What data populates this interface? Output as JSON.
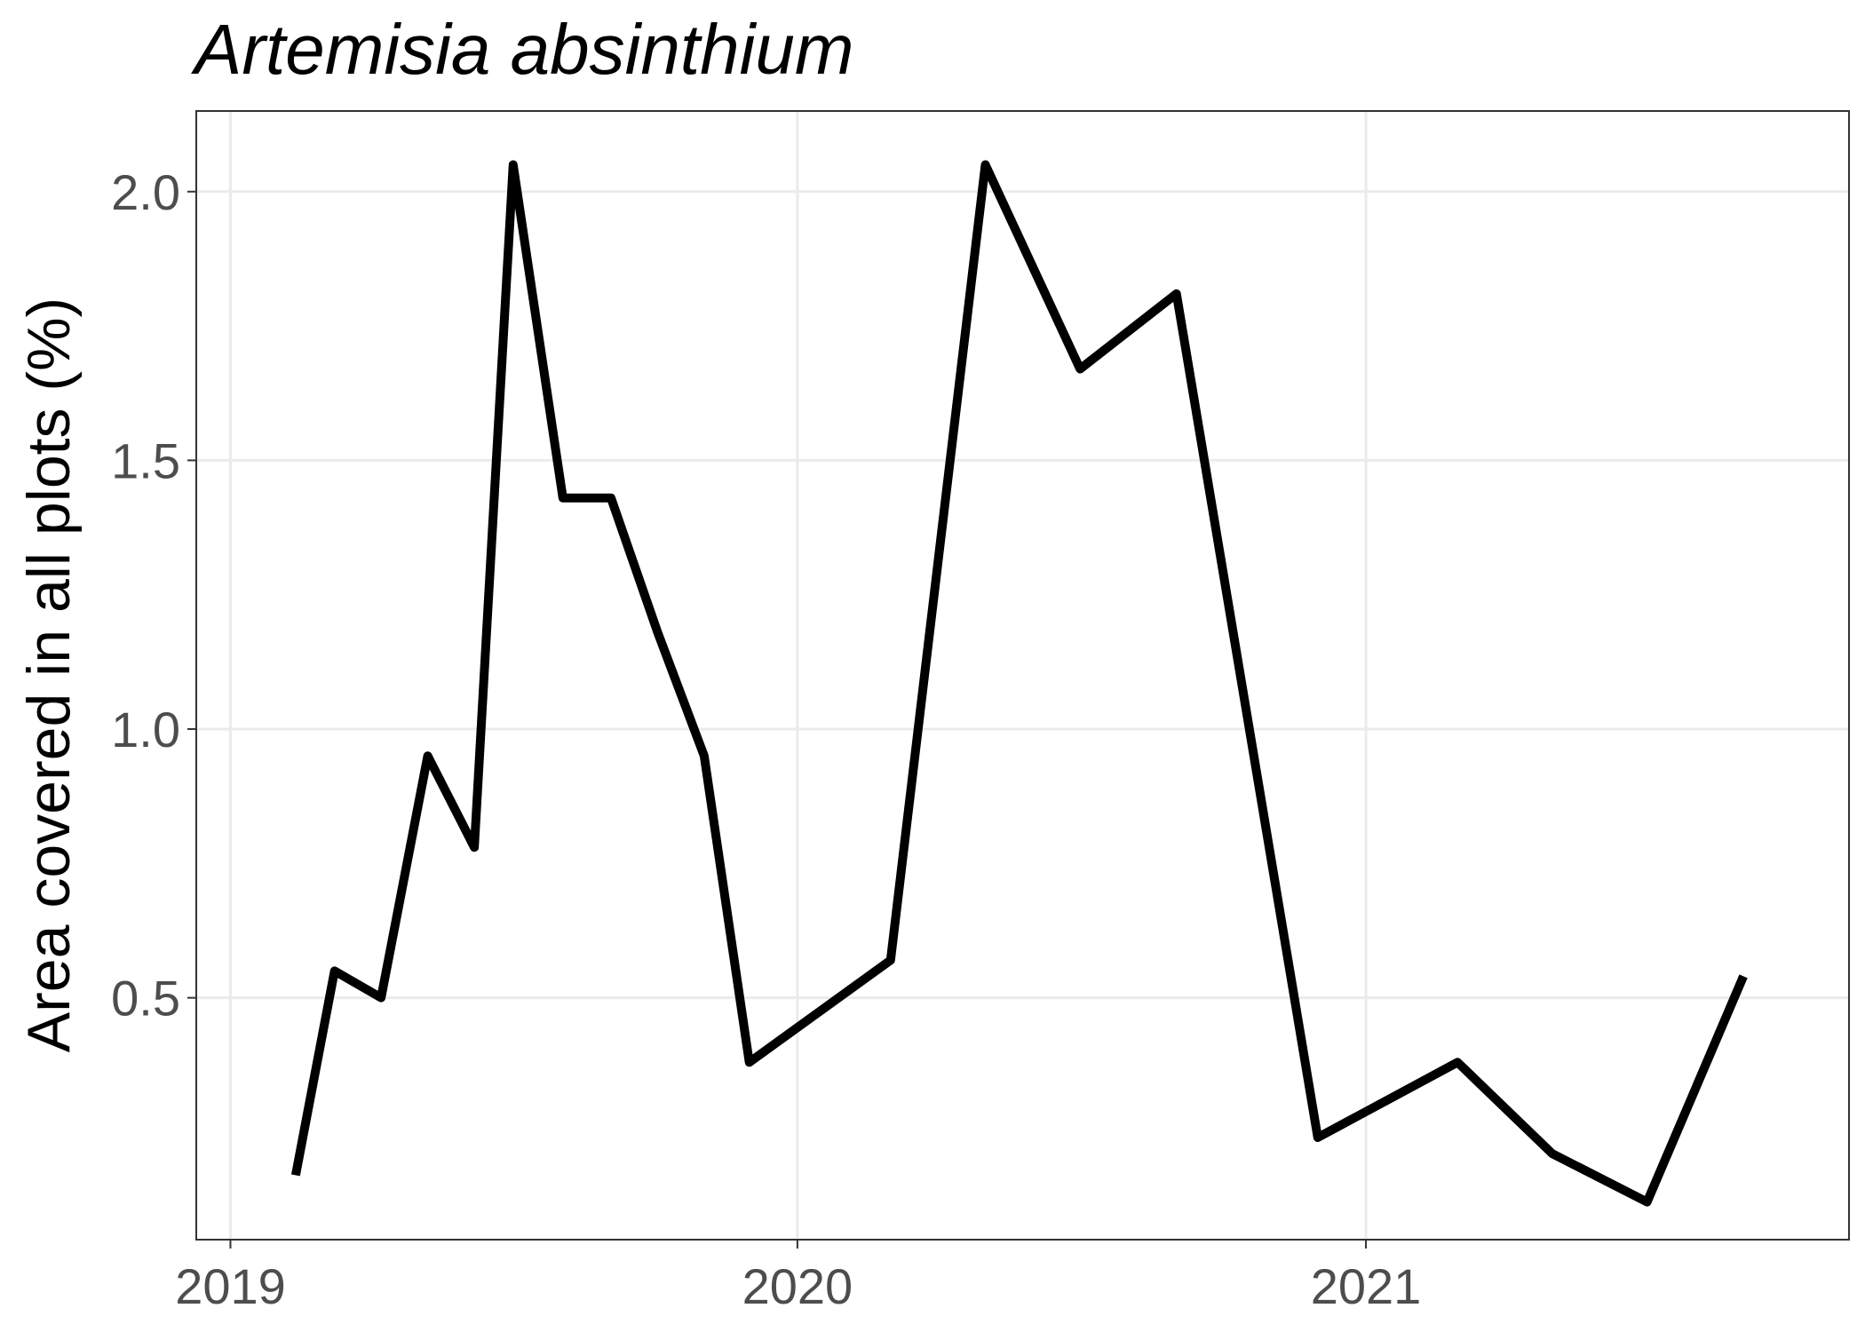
{
  "chart_data": {
    "type": "line",
    "title": "Artemisia absinthium",
    "xlabel": "",
    "ylabel": "Area covered in all plots (%)",
    "x_ticks": [
      "2019",
      "2020",
      "2021"
    ],
    "y_ticks": [
      "0.5",
      "1.0",
      "1.5",
      "2.0"
    ],
    "xlim": [
      "2018-12-10",
      "2021-11-08"
    ],
    "ylim": [
      0.05,
      2.15
    ],
    "grid": true,
    "legend": "none",
    "line_color": "#000000",
    "series": [
      {
        "x": [
          "2019-02-12",
          "2019-03-09",
          "2019-04-08",
          "2019-05-08",
          "2019-06-07",
          "2019-07-02",
          "2019-08-03",
          "2019-09-03",
          "2019-10-03",
          "2019-11-02",
          "2019-12-01",
          "2020-03-01",
          "2020-05-01",
          "2020-07-01",
          "2020-09-01",
          "2020-12-01",
          "2021-03-01",
          "2021-05-01",
          "2021-07-01",
          "2021-09-01"
        ],
        "y": [
          0.17,
          0.55,
          0.5,
          0.95,
          0.78,
          2.05,
          1.43,
          1.43,
          1.18,
          0.95,
          0.38,
          0.57,
          2.05,
          1.67,
          1.81,
          0.24,
          0.38,
          0.21,
          0.12,
          0.54
        ]
      }
    ]
  }
}
